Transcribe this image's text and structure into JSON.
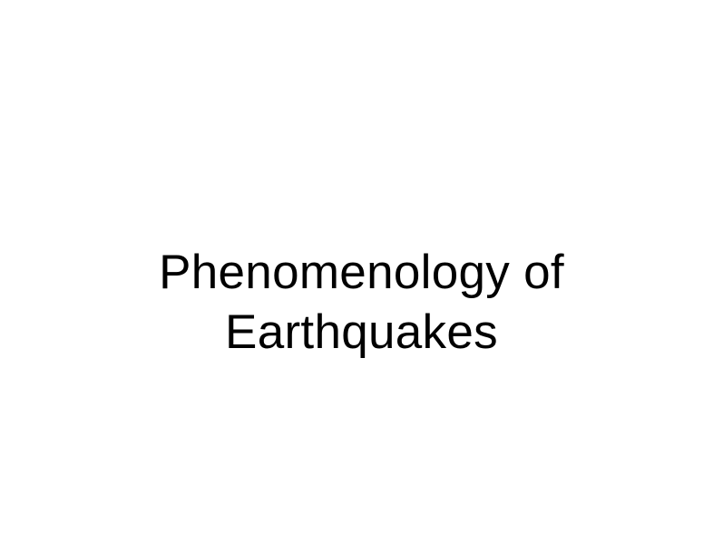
{
  "slide": {
    "title_lines": [
      "Phenomenology of",
      "Earthquakes"
    ],
    "background_color": "#ffffff",
    "text_color": "#000000"
  }
}
